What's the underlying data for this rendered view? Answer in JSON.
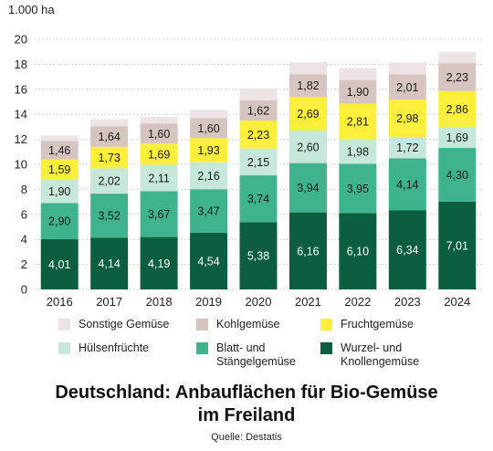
{
  "chart_data": {
    "type": "bar",
    "stacked": true,
    "title": "Deutschland: Anbauflächen für Bio-Gemüse im Freiland",
    "title_lines": [
      "Deutschland: Anbauflächen für Bio-Gemüse",
      "im Freiland"
    ],
    "source": "Quelle: Destatis",
    "ylabel": "1.000 ha",
    "xlabel": "",
    "ylim": [
      0,
      20
    ],
    "yticks": [
      0,
      2,
      4,
      6,
      8,
      10,
      12,
      14,
      16,
      18,
      20
    ],
    "grid": true,
    "legend_position": "bottom",
    "categories": [
      "2016",
      "2017",
      "2018",
      "2019",
      "2020",
      "2021",
      "2022",
      "2023",
      "2024"
    ],
    "series": [
      {
        "name": "Wurzel- und Knollengemüse",
        "color": "#0b5e3f",
        "values": [
          4.01,
          4.14,
          4.19,
          4.54,
          5.38,
          6.16,
          6.1,
          6.34,
          7.01
        ],
        "labels": [
          "4,01",
          "4,14",
          "4,19",
          "4,54",
          "5,38",
          "6,16",
          "6,10",
          "6,34",
          "7,01"
        ],
        "label_color": "#ffffff"
      },
      {
        "name": "Blatt- und Stängelgemüse",
        "color": "#3fb28e",
        "values": [
          2.9,
          3.52,
          3.67,
          3.47,
          3.74,
          3.94,
          3.95,
          4.14,
          4.3
        ],
        "labels": [
          "2,90",
          "3,52",
          "3,67",
          "3,47",
          "3,74",
          "3,94",
          "3,95",
          "4,14",
          "4,30"
        ],
        "label_color": "#1a1a1a"
      },
      {
        "name": "Hülsenfrüchte",
        "color": "#c6e7da",
        "values": [
          1.9,
          2.02,
          2.11,
          2.16,
          2.15,
          2.6,
          1.98,
          1.72,
          1.69
        ],
        "labels": [
          "1,90",
          "2,02",
          "2,11",
          "2,16",
          "2,15",
          "2,60",
          "1,98",
          "1,72",
          "1,69"
        ],
        "label_color": "#1a1a1a"
      },
      {
        "name": "Fruchtgemüse",
        "color": "#fbef3b",
        "values": [
          1.59,
          1.73,
          1.69,
          1.93,
          2.23,
          2.69,
          2.81,
          2.98,
          2.86
        ],
        "labels": [
          "1,59",
          "1,73",
          "1,69",
          "1,93",
          "2,23",
          "2,69",
          "2,81",
          "2,98",
          "2,86"
        ],
        "label_color": "#1a1a1a"
      },
      {
        "name": "Kohlgemüse",
        "color": "#d6c4c0",
        "values": [
          1.46,
          1.64,
          1.6,
          1.6,
          1.62,
          1.82,
          1.9,
          2.01,
          2.23
        ],
        "labels": [
          "1,46",
          "1,64",
          "1,60",
          "1,60",
          "1,62",
          "1,82",
          "1,90",
          "2,01",
          "2,23"
        ],
        "label_color": "#1a1a1a"
      },
      {
        "name": "Sonstige Gemüse",
        "color": "#ede3e5",
        "values": [
          0.45,
          0.55,
          0.55,
          0.65,
          0.95,
          0.95,
          0.95,
          0.95,
          0.92
        ],
        "labels": [
          "",
          "",
          "",
          "",
          "",
          "",
          "",
          "",
          ""
        ],
        "label_color": "#1a1a1a"
      }
    ]
  },
  "legend": [
    {
      "label": "Sonstige Gemüse",
      "color": "#ede3e5"
    },
    {
      "label": "Kohlgemüse",
      "color": "#d6c4c0"
    },
    {
      "label": "Fruchtgemüse",
      "color": "#fbef3b"
    },
    {
      "label": "Hülsenfrüchte",
      "color": "#c6e7da"
    },
    {
      "label": "Blatt- und Stängelgemüse",
      "color": "#3fb28e"
    },
    {
      "label": "Wurzel- und Knollengemüse",
      "color": "#0b5e3f"
    }
  ]
}
